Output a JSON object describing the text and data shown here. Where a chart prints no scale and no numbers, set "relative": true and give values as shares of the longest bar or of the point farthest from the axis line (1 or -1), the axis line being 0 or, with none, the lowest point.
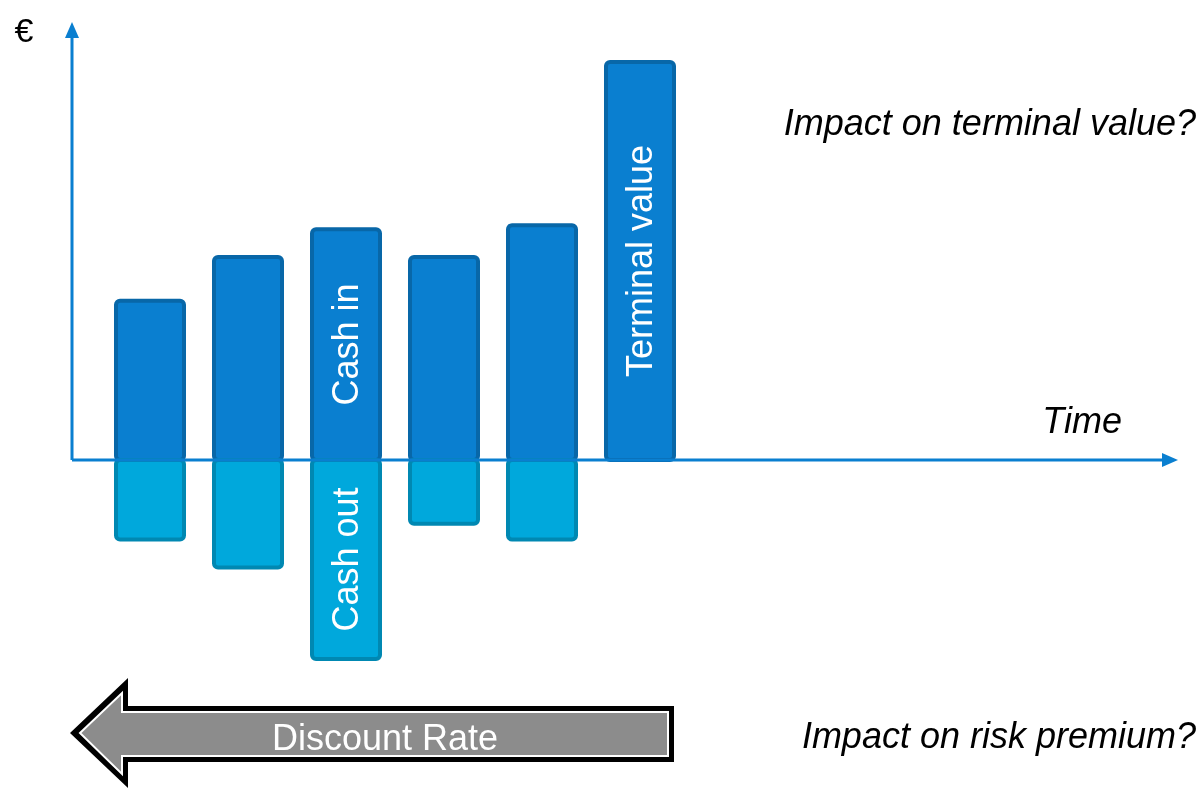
{
  "chart_data": {
    "type": "bar",
    "relative": true,
    "stacked": true,
    "ylabel": "€",
    "categories": [
      null,
      null,
      null,
      null,
      null,
      null
    ],
    "series": [
      {
        "name": "Cash in",
        "color": "#0a7fd0",
        "values": [
          0.4,
          0.51,
          0.58,
          0.51,
          0.59,
          null
        ]
      },
      {
        "name": "Cash out",
        "color": "#00a8dc",
        "values": [
          -0.2,
          -0.27,
          -0.5,
          -0.16,
          -0.2,
          null
        ]
      },
      {
        "name": "Terminal value",
        "color": "#0a7fd0",
        "values": [
          null,
          null,
          null,
          null,
          null,
          1
        ]
      }
    ],
    "ref_lines": [
      {
        "axis": "y",
        "value": 0,
        "color": "#0a7fd0"
      }
    ],
    "annotations": [
      "Impact on terminal value?",
      "Discount Rate",
      "Impact on risk premium?",
      "Time"
    ]
  }
}
